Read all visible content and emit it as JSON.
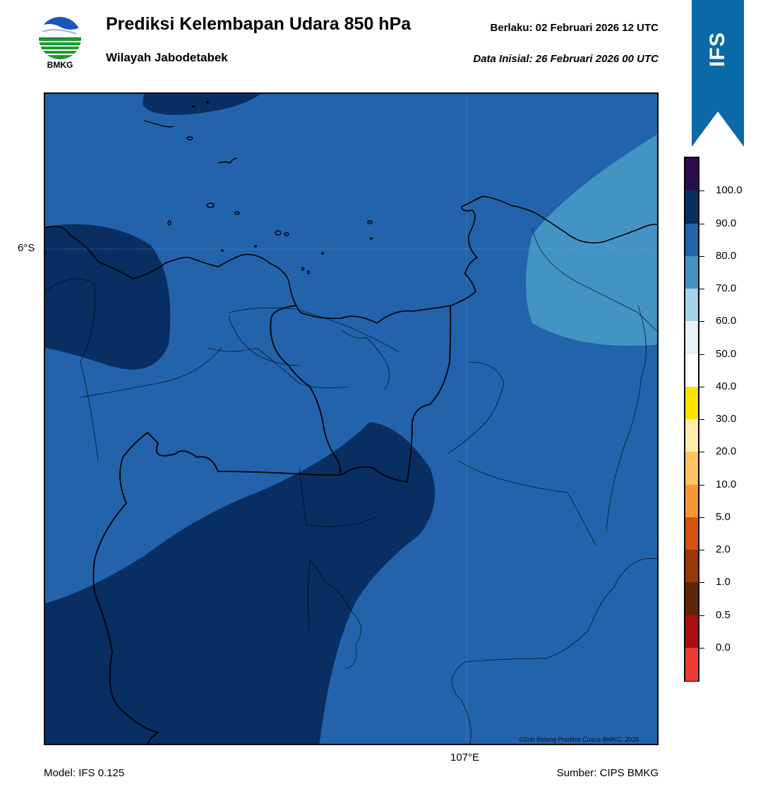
{
  "header": {
    "title": "Prediksi Kelembapan Udara 850 hPa",
    "subtitle": "Wilayah Jabodetabek",
    "valid_time": "Berlaku:  02 Februari 2026 12 UTC",
    "init_time": "Data Inisial:  26 Februari 2026 00 UTC"
  },
  "logo": {
    "text": "BMKG",
    "icon": "bmkg-logo-icon"
  },
  "ribbon": {
    "text": "IFS",
    "color": "#0a69a7"
  },
  "map": {
    "lat_label": "6°S",
    "lon_label": "107°E",
    "credit": "©Sub Bidang Prediksi Cuaca BMKG, 2026",
    "colors": {
      "rh_80_90": "#2263ac",
      "rh_90_100": "#082e62",
      "rh_70_80": "#4393c3",
      "border": "#000000"
    }
  },
  "colorbar": {
    "levels": [
      {
        "label": "100.0",
        "color": "#2c0b4a"
      },
      {
        "label": "90.0",
        "color": "#082e62"
      },
      {
        "label": "80.0",
        "color": "#2263ac"
      },
      {
        "label": "70.0",
        "color": "#4393c3"
      },
      {
        "label": "60.0",
        "color": "#a6d1e6"
      },
      {
        "label": "50.0",
        "color": "#e6f1f8"
      },
      {
        "label": "40.0",
        "color": "#ffffff"
      },
      {
        "label": "30.0",
        "color": "#fde200"
      },
      {
        "label": "20.0",
        "color": "#feedaa"
      },
      {
        "label": "10.0",
        "color": "#fdc560"
      },
      {
        "label": "5.0",
        "color": "#f89734"
      },
      {
        "label": "2.0",
        "color": "#d6520c"
      },
      {
        "label": "1.0",
        "color": "#9a3807"
      },
      {
        "label": "0.5",
        "color": "#5f2507"
      },
      {
        "label": "0.0",
        "color": "#aa0e12"
      },
      {
        "label": "",
        "color": "#ee3b32"
      }
    ]
  },
  "footer": {
    "model": "Model: IFS 0.125",
    "source": "Sumber: CIPS BMKG"
  }
}
